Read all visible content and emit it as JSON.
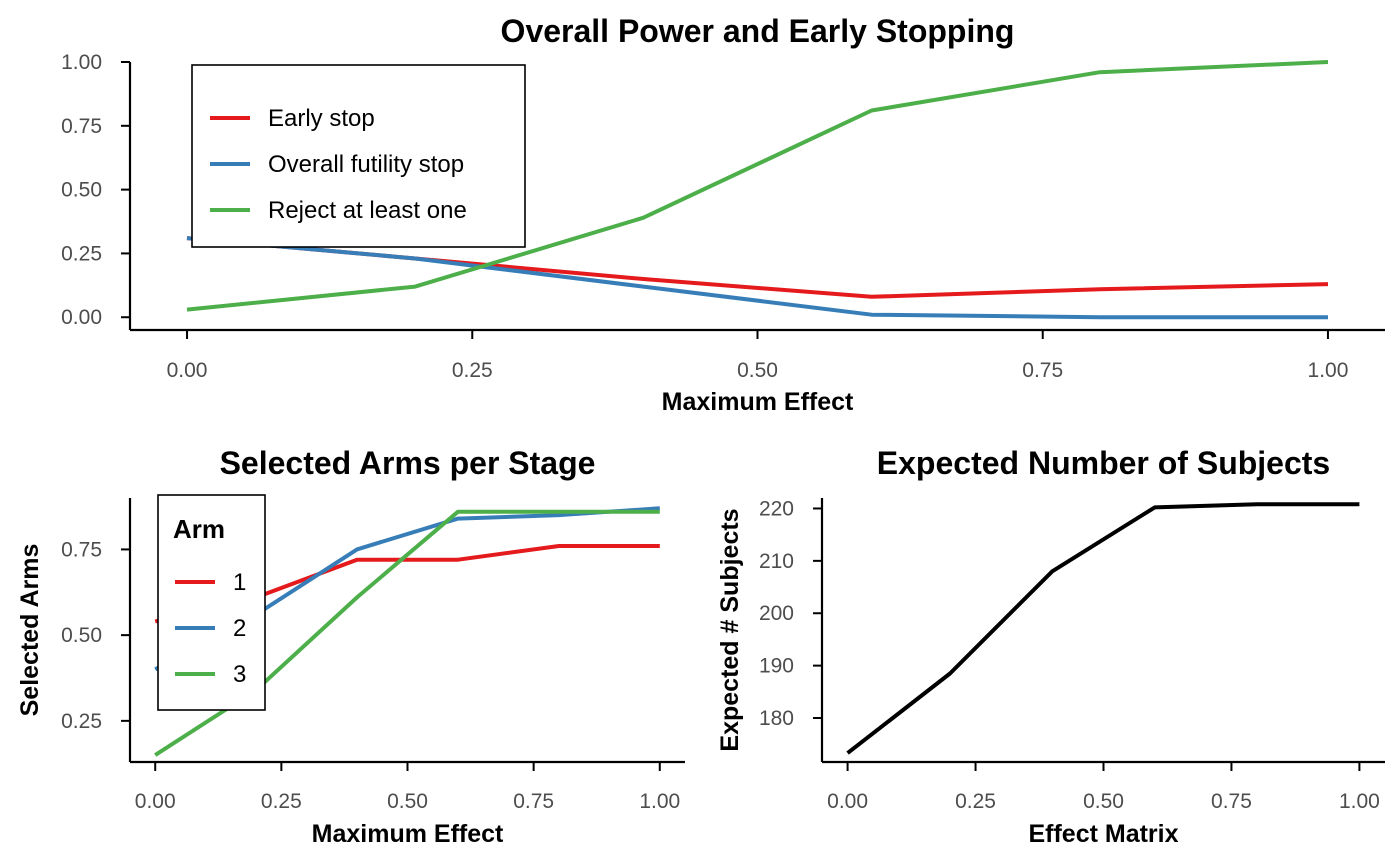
{
  "chart_data": [
    {
      "type": "line",
      "title": "Overall Power and Early Stopping",
      "xlabel": "Maximum Effect",
      "ylabel": "",
      "xlim": [
        -0.05,
        1.05
      ],
      "ylim": [
        -0.05,
        1.0
      ],
      "x_ticks": [
        0,
        0.25,
        0.5,
        0.75,
        1
      ],
      "x_tick_labels": [
        "0.00",
        "0.25",
        "0.50",
        "0.75",
        "1.00"
      ],
      "y_ticks": [
        0,
        0.25,
        0.5,
        0.75,
        1
      ],
      "y_tick_labels": [
        "0.00",
        "0.25",
        "0.50",
        "0.75",
        "1.00"
      ],
      "x": [
        0,
        0.2,
        0.4,
        0.6,
        0.8,
        1.0
      ],
      "series": [
        {
          "name": "Early stop",
          "color": "#e41a1c",
          "values": [
            0.31,
            0.23,
            0.15,
            0.08,
            0.11,
            0.13
          ]
        },
        {
          "name": "Overall futility stop",
          "color": "#377eb8",
          "values": [
            0.31,
            0.23,
            0.12,
            0.01,
            0.0,
            0.0
          ]
        },
        {
          "name": "Reject at least one",
          "color": "#4daf4a",
          "values": [
            0.03,
            0.12,
            0.39,
            0.81,
            0.96,
            1.0
          ]
        }
      ],
      "legend": {
        "title": "",
        "position": "top-left"
      },
      "grid": false
    },
    {
      "type": "line",
      "title": "Selected Arms per Stage",
      "xlabel": "Maximum Effect",
      "ylabel": "Selected Arms",
      "xlim": [
        -0.05,
        1.05
      ],
      "ylim": [
        0.13,
        0.9
      ],
      "x_ticks": [
        0,
        0.25,
        0.5,
        0.75,
        1
      ],
      "x_tick_labels": [
        "0.00",
        "0.25",
        "0.50",
        "0.75",
        "1.00"
      ],
      "y_ticks": [
        0.25,
        0.5,
        0.75
      ],
      "y_tick_labels": [
        "0.25",
        "0.50",
        "0.75"
      ],
      "x": [
        0,
        0.2,
        0.4,
        0.6,
        0.8,
        1.0
      ],
      "series": [
        {
          "name": "1",
          "color": "#e41a1c",
          "values": [
            0.54,
            0.61,
            0.72,
            0.72,
            0.76,
            0.76
          ]
        },
        {
          "name": "2",
          "color": "#377eb8",
          "values": [
            0.4,
            0.56,
            0.75,
            0.84,
            0.85,
            0.87
          ]
        },
        {
          "name": "3",
          "color": "#4daf4a",
          "values": [
            0.15,
            0.34,
            0.61,
            0.86,
            0.86,
            0.86
          ]
        }
      ],
      "legend": {
        "title": "Arm",
        "position": "top-left"
      },
      "grid": false
    },
    {
      "type": "line",
      "title": "Expected Number of Subjects",
      "xlabel": "Effect Matrix",
      "ylabel": "Expected # Subjects",
      "xlim": [
        -0.05,
        1.05
      ],
      "ylim": [
        171.6,
        222.0
      ],
      "x_ticks": [
        0,
        0.25,
        0.5,
        0.75,
        1
      ],
      "x_tick_labels": [
        "0.00",
        "0.25",
        "0.50",
        "0.75",
        "1.00"
      ],
      "y_ticks": [
        180,
        190,
        200,
        210,
        220
      ],
      "y_tick_labels": [
        "180",
        "190",
        "200",
        "210",
        "220"
      ],
      "x": [
        0,
        0.2,
        0.4,
        0.6,
        0.8,
        1.0
      ],
      "series": [
        {
          "color": "#000000",
          "values": [
            173.3,
            188.5,
            208.0,
            220.2,
            220.8,
            220.8
          ]
        }
      ],
      "grid": false
    }
  ]
}
